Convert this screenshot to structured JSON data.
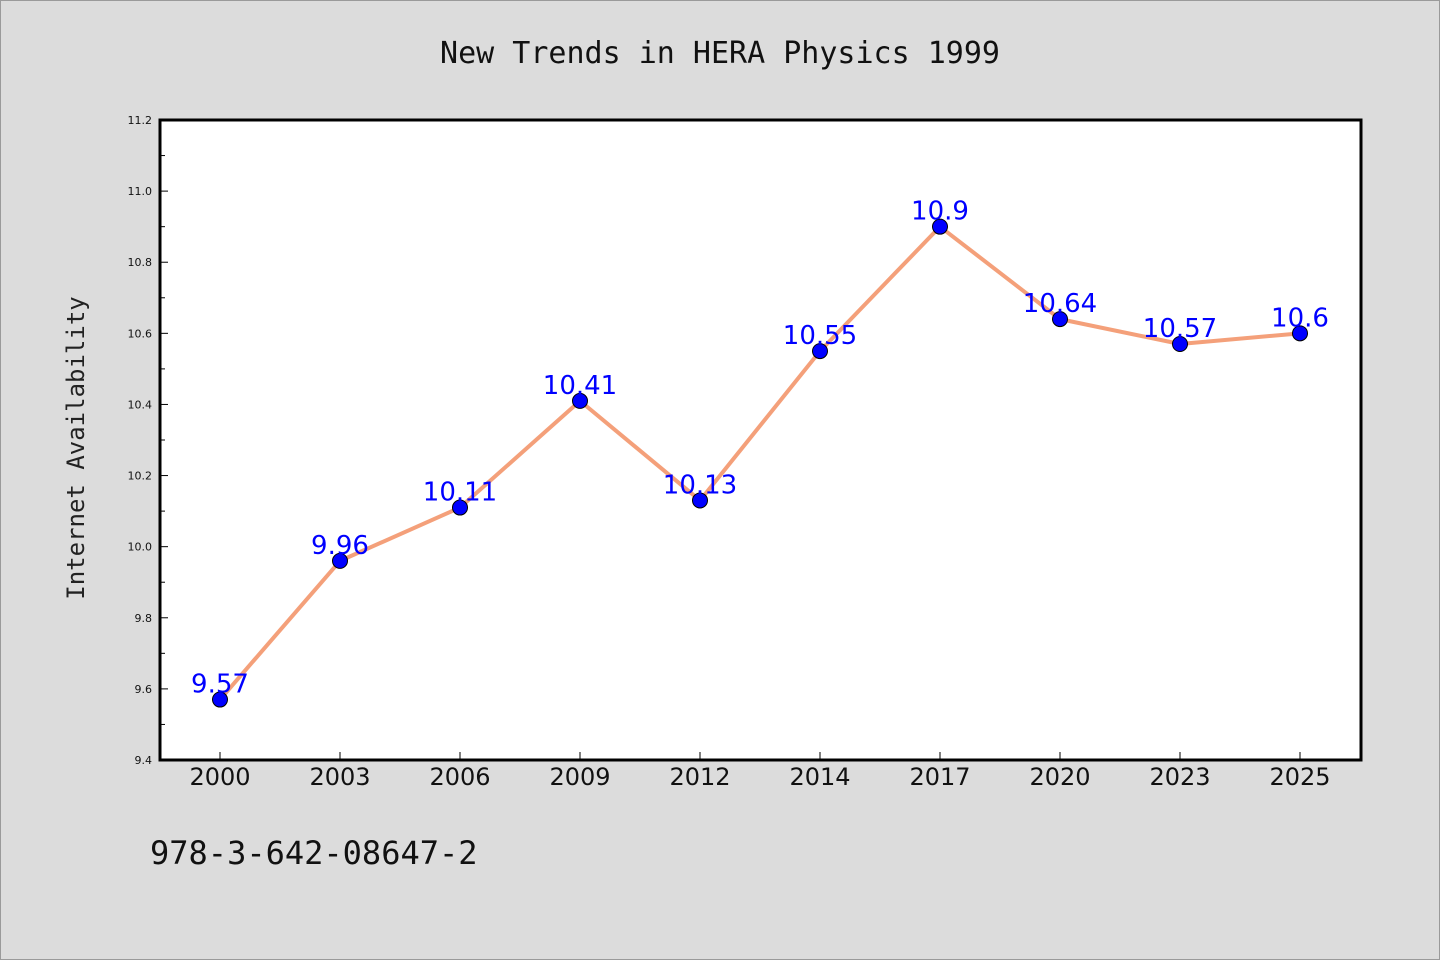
{
  "colors": {
    "background": "#dcdcdc",
    "plot_background": "#ffffff",
    "line": "#f4a07a",
    "marker": "#0000ff",
    "data_label": "#0000ff"
  },
  "footer": {
    "isbn": "978-3-642-08647-2"
  },
  "chart_data": {
    "type": "line",
    "title": "New Trends in HERA Physics 1999",
    "xlabel": "",
    "ylabel": "Internet Availability",
    "categories": [
      "2000",
      "2003",
      "2006",
      "2009",
      "2012",
      "2014",
      "2017",
      "2020",
      "2023",
      "2025"
    ],
    "series": [
      {
        "values": [
          9.57,
          9.96,
          10.11,
          10.41,
          10.13,
          10.55,
          10.9,
          10.64,
          10.57,
          10.6
        ],
        "labels": [
          "9.57",
          "9.96",
          "10.11",
          "10.41",
          "10.13",
          "10.55",
          "10.9",
          "10.64",
          "10.57",
          "10.6"
        ]
      }
    ],
    "ylim": [
      9.4,
      11.2
    ],
    "yticks": [
      "9.4",
      "9.6",
      "9.8",
      "10.0",
      "10.2",
      "10.4",
      "10.6",
      "10.8",
      "11.0",
      "11.2"
    ],
    "grid": false,
    "legend": "none"
  }
}
